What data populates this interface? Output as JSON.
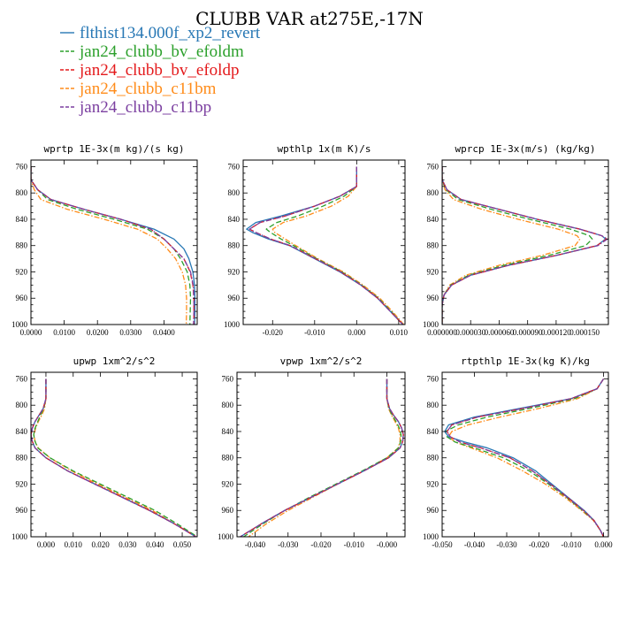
{
  "figure": {
    "title": "CLUBB VAR at275E,-17N"
  },
  "legend": [
    {
      "name": "flthist134.000f_xp2_revert",
      "color": "#2878b5",
      "dash": "solid"
    },
    {
      "name": "jan24_clubb_bv_efoldm",
      "color": "#2ca02c",
      "dash": "dash"
    },
    {
      "name": "jan24_clubb_bv_efoldp",
      "color": "#e41a1c",
      "dash": "dash"
    },
    {
      "name": "jan24_clubb_c11bm",
      "color": "#ff8c1a",
      "dash": "dashdot"
    },
    {
      "name": "jan24_clubb_c11bp",
      "color": "#7b3fa0",
      "dash": "dashdot"
    }
  ],
  "chart_data": [
    {
      "type": "line",
      "title": "wprtp  1E-3x(m kg)/(s kg)",
      "xlim": [
        0.0,
        0.05
      ],
      "ylim": [
        1000,
        750
      ],
      "xticks": [
        0.0,
        0.01,
        0.02,
        0.03,
        0.04
      ],
      "xticklabels": [
        "0.0000",
        "0.0100",
        "0.0200",
        "0.0300",
        "0.0400"
      ],
      "yticks": [
        760,
        800,
        840,
        880,
        920,
        960,
        1000
      ],
      "y": [
        760,
        780,
        795,
        810,
        825,
        840,
        855,
        870,
        885,
        900,
        920,
        940,
        960,
        980,
        1000
      ],
      "series": [
        {
          "name": "flthist134.000f_xp2_revert",
          "values": [
            0,
            0,
            0.002,
            0.006,
            0.016,
            0.027,
            0.037,
            0.043,
            0.046,
            0.0475,
            0.0487,
            0.0492,
            0.0493,
            0.0493,
            0.0492
          ]
        },
        {
          "name": "jan24_clubb_bv_efoldm",
          "values": [
            0,
            0,
            0.002,
            0.005,
            0.014,
            0.025,
            0.035,
            0.04,
            0.043,
            0.045,
            0.047,
            0.0478,
            0.048,
            0.0479,
            0.0478
          ]
        },
        {
          "name": "jan24_clubb_bv_efoldp",
          "values": [
            0,
            0,
            0.002,
            0.006,
            0.016,
            0.027,
            0.036,
            0.04,
            0.043,
            0.046,
            0.0479,
            0.0487,
            0.049,
            0.049,
            0.049
          ]
        },
        {
          "name": "jan24_clubb_c11bm",
          "values": [
            0,
            0,
            0.001,
            0.003,
            0.011,
            0.022,
            0.032,
            0.038,
            0.041,
            0.0435,
            0.0455,
            0.0465,
            0.0468,
            0.0468,
            0.0467
          ]
        },
        {
          "name": "jan24_clubb_c11bp",
          "values": [
            0,
            0,
            0.002,
            0.006,
            0.016,
            0.027,
            0.036,
            0.04,
            0.043,
            0.046,
            0.048,
            0.0488,
            0.049,
            0.049,
            0.0489
          ]
        }
      ]
    },
    {
      "type": "line",
      "title": "wpthlp  1x(m K)/s",
      "xlim": [
        -0.027,
        0.0115
      ],
      "ylim": [
        1000,
        750
      ],
      "xticks": [
        -0.02,
        -0.01,
        0.0,
        0.01
      ],
      "xticklabels": [
        "-0.020",
        "-0.010",
        "0.000",
        "0.010"
      ],
      "yticks": [
        760,
        800,
        840,
        880,
        920,
        960,
        1000
      ],
      "y": [
        760,
        790,
        805,
        820,
        835,
        845,
        855,
        860,
        870,
        880,
        900,
        920,
        940,
        960,
        980,
        1000
      ],
      "series": [
        {
          "name": "flthist134.000f_xp2_revert",
          "values": [
            0,
            0,
            -0.004,
            -0.01,
            -0.018,
            -0.024,
            -0.0262,
            -0.0248,
            -0.021,
            -0.016,
            -0.01,
            -0.004,
            0.001,
            0.005,
            0.008,
            0.011
          ]
        },
        {
          "name": "jan24_clubb_bv_efoldm",
          "values": [
            0,
            0,
            -0.003,
            -0.008,
            -0.014,
            -0.019,
            -0.0215,
            -0.0205,
            -0.018,
            -0.015,
            -0.0095,
            -0.0035,
            0.0012,
            0.0052,
            0.0082,
            0.011
          ]
        },
        {
          "name": "jan24_clubb_bv_efoldp",
          "values": [
            0,
            0,
            -0.004,
            -0.01,
            -0.017,
            -0.023,
            -0.0255,
            -0.024,
            -0.0205,
            -0.0158,
            -0.0098,
            -0.0038,
            0.001,
            0.005,
            0.008,
            0.011
          ]
        },
        {
          "name": "jan24_clubb_c11bm",
          "values": [
            0,
            0,
            -0.002,
            -0.006,
            -0.012,
            -0.0175,
            -0.02,
            -0.0195,
            -0.017,
            -0.0145,
            -0.0092,
            -0.0032,
            0.0015,
            0.0055,
            0.0085,
            0.0112
          ]
        },
        {
          "name": "jan24_clubb_c11bp",
          "values": [
            0,
            0,
            -0.004,
            -0.01,
            -0.017,
            -0.023,
            -0.0255,
            -0.024,
            -0.0205,
            -0.0158,
            -0.0098,
            -0.0038,
            0.001,
            0.005,
            0.008,
            0.011
          ]
        }
      ]
    },
    {
      "type": "line",
      "title": "wprcp  1E-3x(m/s) (kg/kg)",
      "xlim": [
        0.0,
        0.000175
      ],
      "ylim": [
        1000,
        750
      ],
      "xticks": [
        0.0,
        3e-05,
        6e-05,
        9e-05,
        0.00012,
        0.00015
      ],
      "xticklabels": [
        "0.000000",
        "0.000030",
        "0.000060",
        "0.000090",
        "0.000120",
        "0.000150"
      ],
      "yticks": [
        760,
        800,
        840,
        880,
        920,
        960,
        1000
      ],
      "y": [
        760,
        780,
        795,
        810,
        825,
        840,
        855,
        865,
        870,
        880,
        895,
        910,
        925,
        940,
        955,
        970,
        1000
      ],
      "series": [
        {
          "name": "flthist134.000f_xp2_revert",
          "values": [
            0,
            0,
            5e-06,
            2e-05,
            6e-05,
            0.0001,
            0.000145,
            0.000168,
            0.000172,
            0.000163,
            0.00012,
            7e-05,
            3e-05,
            1e-05,
            2e-06,
            0,
            0
          ]
        },
        {
          "name": "jan24_clubb_bv_efoldm",
          "values": [
            0,
            0,
            4e-06,
            1.7e-05,
            5.2e-05,
            9.2e-05,
            0.000135,
            0.000155,
            0.000158,
            0.000151,
            0.000112,
            6.5e-05,
            2.8e-05,
            9e-06,
            2e-06,
            0,
            0
          ]
        },
        {
          "name": "jan24_clubb_bv_efoldp",
          "values": [
            0,
            0,
            5e-06,
            2e-05,
            6e-05,
            0.0001,
            0.000145,
            0.000168,
            0.000173,
            0.000163,
            0.00012,
            7e-05,
            3e-05,
            1e-05,
            2e-06,
            0,
            0
          ]
        },
        {
          "name": "jan24_clubb_c11bm",
          "values": [
            0,
            0,
            3e-06,
            1.2e-05,
            4.2e-05,
            8e-05,
            0.000122,
            0.000142,
            0.000145,
            0.00014,
            0.000105,
            6e-05,
            2.5e-05,
            8e-06,
            2e-06,
            0,
            0
          ]
        },
        {
          "name": "jan24_clubb_c11bp",
          "values": [
            0,
            0,
            5e-06,
            2e-05,
            6e-05,
            0.0001,
            0.000145,
            0.000168,
            0.000174,
            0.000164,
            0.00012,
            7e-05,
            3e-05,
            1e-05,
            2e-06,
            0,
            0
          ]
        }
      ]
    },
    {
      "type": "line",
      "title": "upwp  1xm^2/s^2",
      "xlim": [
        -0.0055,
        0.0555
      ],
      "ylim": [
        1000,
        750
      ],
      "xticks": [
        0.0,
        0.01,
        0.02,
        0.03,
        0.04,
        0.05
      ],
      "xticklabels": [
        "0.000",
        "0.010",
        "0.020",
        "0.030",
        "0.040",
        "0.050"
      ],
      "yticks": [
        760,
        800,
        840,
        880,
        920,
        960,
        1000
      ],
      "y": [
        760,
        790,
        805,
        815,
        825,
        835,
        845,
        855,
        865,
        880,
        900,
        920,
        940,
        960,
        980,
        1000
      ],
      "series": [
        {
          "name": "flthist134.000f_xp2_revert",
          "values": [
            0,
            0,
            -0.001,
            -0.0025,
            -0.004,
            -0.005,
            -0.0055,
            -0.005,
            -0.004,
            0.0,
            0.008,
            0.018,
            0.028,
            0.038,
            0.047,
            0.055
          ]
        },
        {
          "name": "jan24_clubb_bv_efoldm",
          "values": [
            0,
            0,
            -0.0008,
            -0.002,
            -0.003,
            -0.004,
            -0.0045,
            -0.004,
            -0.003,
            0.0015,
            0.01,
            0.02,
            0.03,
            0.04,
            0.048,
            0.0555
          ]
        },
        {
          "name": "jan24_clubb_bv_efoldp",
          "values": [
            0,
            0,
            -0.001,
            -0.0025,
            -0.004,
            -0.005,
            -0.0055,
            -0.005,
            -0.004,
            0.0,
            0.008,
            0.018,
            0.028,
            0.038,
            0.047,
            0.055
          ]
        },
        {
          "name": "jan24_clubb_c11bm",
          "values": [
            0,
            0,
            -0.0005,
            -0.0015,
            -0.0028,
            -0.0038,
            -0.0044,
            -0.004,
            -0.0028,
            0.0015,
            0.0095,
            0.019,
            0.029,
            0.039,
            0.047,
            0.0555
          ]
        },
        {
          "name": "jan24_clubb_c11bp",
          "values": [
            0,
            0,
            -0.001,
            -0.0025,
            -0.004,
            -0.005,
            -0.0055,
            -0.005,
            -0.004,
            0.0,
            0.008,
            0.018,
            0.028,
            0.038,
            0.047,
            0.055
          ]
        }
      ]
    },
    {
      "type": "line",
      "title": "vpwp  1xm^2/s^2",
      "xlim": [
        -0.0455,
        0.0055
      ],
      "ylim": [
        1000,
        750
      ],
      "xticks": [
        -0.04,
        -0.03,
        -0.02,
        -0.01,
        0.0
      ],
      "xticklabels": [
        "-0.040",
        "-0.030",
        "-0.020",
        "-0.010",
        "-0.000"
      ],
      "yticks": [
        760,
        800,
        840,
        880,
        920,
        960,
        1000
      ],
      "y": [
        760,
        790,
        805,
        815,
        825,
        835,
        845,
        855,
        865,
        880,
        900,
        920,
        940,
        960,
        980,
        1000
      ],
      "series": [
        {
          "name": "flthist134.000f_xp2_revert",
          "values": [
            0,
            0,
            0.0008,
            0.002,
            0.0035,
            0.0045,
            0.005,
            0.0048,
            0.004,
            0.0005,
            -0.007,
            -0.015,
            -0.023,
            -0.031,
            -0.038,
            -0.0445
          ]
        },
        {
          "name": "jan24_clubb_bv_efoldm",
          "values": [
            0,
            0,
            0.0006,
            0.0016,
            0.0028,
            0.0038,
            0.0043,
            0.0042,
            0.0035,
            0.0,
            -0.0075,
            -0.0155,
            -0.0235,
            -0.031,
            -0.0375,
            -0.0435
          ]
        },
        {
          "name": "jan24_clubb_bv_efoldp",
          "values": [
            0,
            0,
            0.0008,
            0.002,
            0.0035,
            0.0045,
            0.005,
            0.0048,
            0.004,
            0.0005,
            -0.007,
            -0.015,
            -0.023,
            -0.031,
            -0.038,
            -0.0445
          ]
        },
        {
          "name": "jan24_clubb_c11bm",
          "values": [
            0,
            0,
            0.0005,
            0.0014,
            0.0025,
            0.0035,
            0.004,
            0.004,
            0.0034,
            0.0,
            -0.0072,
            -0.015,
            -0.0225,
            -0.03,
            -0.0365,
            -0.042
          ]
        },
        {
          "name": "jan24_clubb_c11bp",
          "values": [
            0,
            0,
            0.0008,
            0.002,
            0.0035,
            0.0045,
            0.005,
            0.0048,
            0.004,
            0.0005,
            -0.007,
            -0.015,
            -0.023,
            -0.031,
            -0.038,
            -0.0445
          ]
        }
      ]
    },
    {
      "type": "line",
      "title": "rtpthlp  1E-3x(kg K)/kg",
      "xlim": [
        -0.05,
        0.0015
      ],
      "ylim": [
        1000,
        750
      ],
      "xticks": [
        -0.05,
        -0.04,
        -0.03,
        -0.02,
        -0.01,
        0.0
      ],
      "xticklabels": [
        "-0.050",
        "-0.040",
        "-0.030",
        "-0.020",
        "-0.010",
        "0.000"
      ],
      "yticks": [
        760,
        800,
        840,
        880,
        920,
        960,
        1000
      ],
      "y": [
        760,
        775,
        790,
        805,
        818,
        830,
        840,
        848,
        856,
        865,
        880,
        900,
        920,
        940,
        960,
        975,
        990,
        1000
      ],
      "series": [
        {
          "name": "flthist134.000f_xp2_revert",
          "values": [
            0,
            -0.002,
            -0.01,
            -0.026,
            -0.04,
            -0.048,
            -0.0492,
            -0.048,
            -0.043,
            -0.036,
            -0.028,
            -0.021,
            -0.016,
            -0.011,
            -0.006,
            -0.003,
            -0.001,
            0
          ]
        },
        {
          "name": "jan24_clubb_bv_efoldm",
          "values": [
            0,
            -0.002,
            -0.009,
            -0.023,
            -0.036,
            -0.045,
            -0.049,
            -0.0485,
            -0.046,
            -0.04,
            -0.031,
            -0.023,
            -0.017,
            -0.0115,
            -0.0065,
            -0.003,
            -0.001,
            0
          ]
        },
        {
          "name": "jan24_clubb_bv_efoldp",
          "values": [
            0,
            -0.002,
            -0.01,
            -0.025,
            -0.039,
            -0.047,
            -0.0485,
            -0.0475,
            -0.0445,
            -0.038,
            -0.029,
            -0.022,
            -0.0165,
            -0.0112,
            -0.0062,
            -0.003,
            -0.001,
            0
          ]
        },
        {
          "name": "jan24_clubb_c11bm",
          "values": [
            0,
            -0.002,
            -0.008,
            -0.02,
            -0.032,
            -0.042,
            -0.047,
            -0.048,
            -0.046,
            -0.041,
            -0.033,
            -0.025,
            -0.018,
            -0.012,
            -0.0068,
            -0.0032,
            -0.001,
            0
          ]
        },
        {
          "name": "jan24_clubb_c11bp",
          "values": [
            0,
            -0.002,
            -0.01,
            -0.025,
            -0.039,
            -0.047,
            -0.0485,
            -0.0475,
            -0.0445,
            -0.038,
            -0.029,
            -0.022,
            -0.0165,
            -0.0112,
            -0.0062,
            -0.003,
            -0.001,
            0
          ]
        }
      ]
    }
  ]
}
